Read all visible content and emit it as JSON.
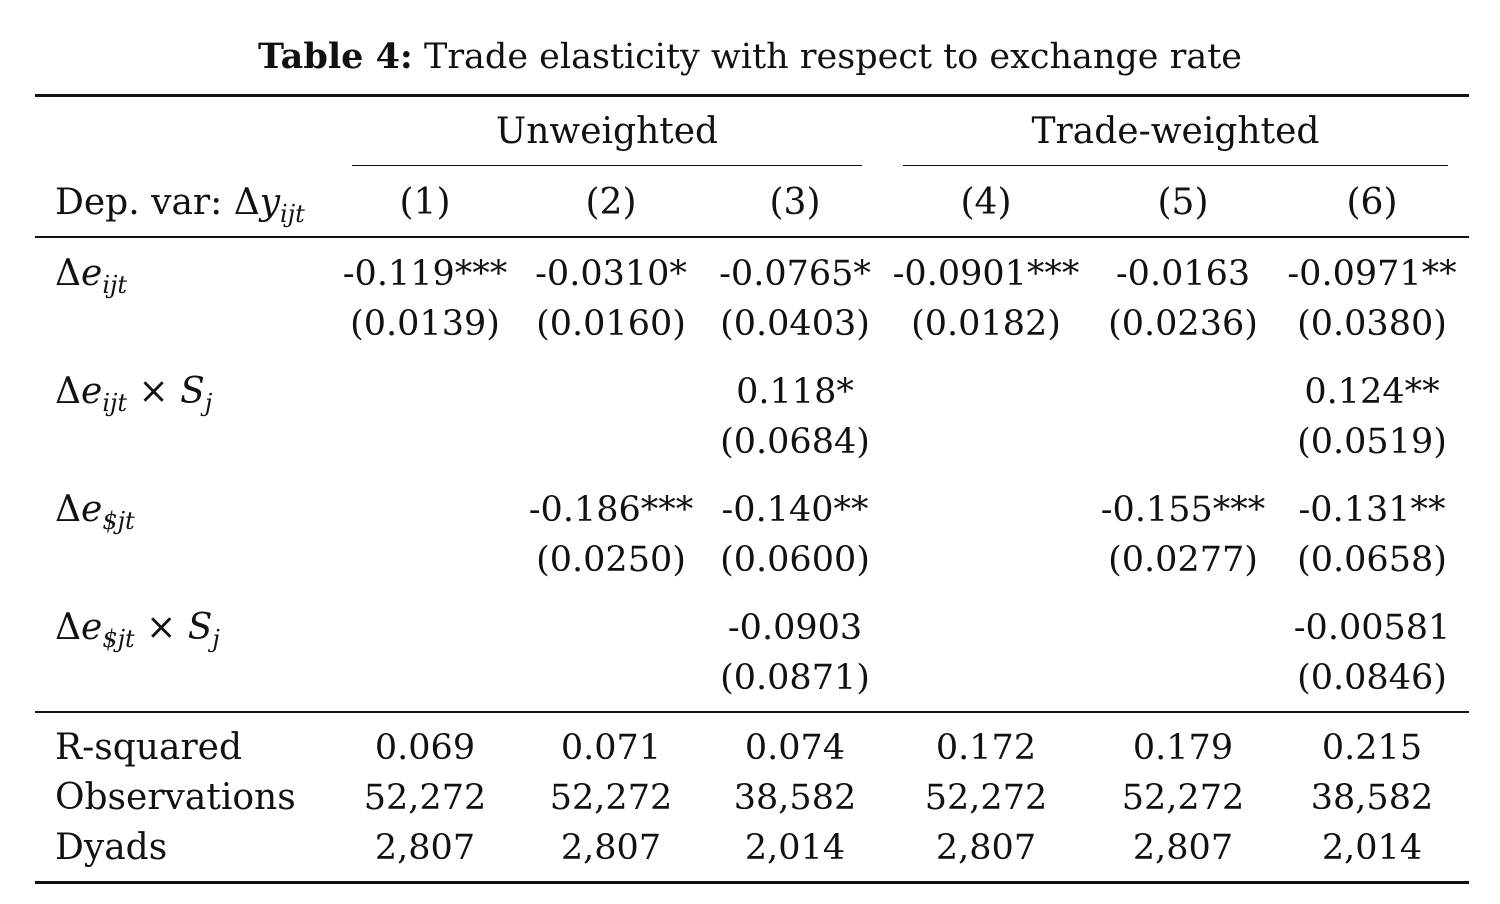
{
  "caption": {
    "label": "Table 4:",
    "text": "Trade elasticity with respect to exchange rate"
  },
  "header": {
    "groups": [
      "Unweighted",
      "Trade-weighted"
    ],
    "dep_var_label": "Dep. var: ",
    "columns": [
      "(1)",
      "(2)",
      "(3)",
      "(4)",
      "(5)",
      "(6)"
    ]
  },
  "rows": [
    {
      "label": "Δe_ijt",
      "coef": [
        "-0.119***",
        "-0.0310*",
        "-0.0765*",
        "-0.0901***",
        "-0.0163",
        "-0.0971**"
      ],
      "se": [
        "(0.0139)",
        "(0.0160)",
        "(0.0403)",
        "(0.0182)",
        "(0.0236)",
        "(0.0380)"
      ]
    },
    {
      "label": "Δe_ijt × S_j",
      "coef": [
        "",
        "",
        "0.118*",
        "",
        "",
        "0.124**"
      ],
      "se": [
        "",
        "",
        "(0.0684)",
        "",
        "",
        "(0.0519)"
      ]
    },
    {
      "label": "Δe_$jt",
      "coef": [
        "",
        "-0.186***",
        "-0.140**",
        "",
        "-0.155***",
        "-0.131**"
      ],
      "se": [
        "",
        "(0.0250)",
        "(0.0600)",
        "",
        "(0.0277)",
        "(0.0658)"
      ]
    },
    {
      "label": "Δe_$jt × S_j",
      "coef": [
        "",
        "",
        "-0.0903",
        "",
        "",
        "-0.00581"
      ],
      "se": [
        "",
        "",
        "(0.0871)",
        "",
        "",
        "(0.0846)"
      ]
    }
  ],
  "stats": [
    {
      "label": "R-squared",
      "values": [
        "0.069",
        "0.071",
        "0.074",
        "0.172",
        "0.179",
        "0.215"
      ]
    },
    {
      "label": "Observations",
      "values": [
        "52,272",
        "52,272",
        "38,582",
        "52,272",
        "52,272",
        "38,582"
      ]
    },
    {
      "label": "Dyads",
      "values": [
        "2,807",
        "2,807",
        "2,014",
        "2,807",
        "2,807",
        "2,014"
      ]
    }
  ]
}
